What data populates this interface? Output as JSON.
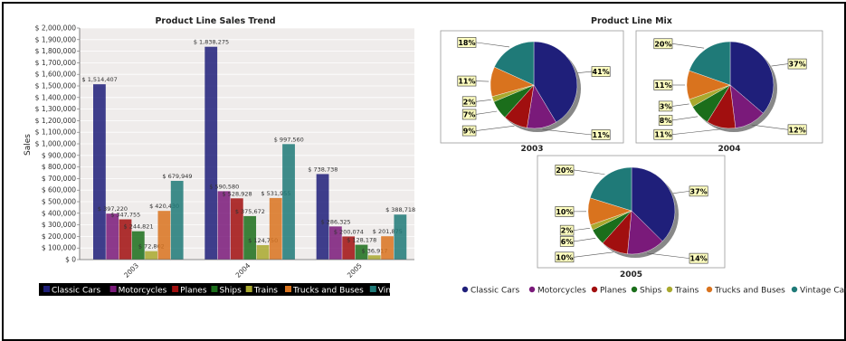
{
  "colors": {
    "Classic Cars": "#1f1f7a",
    "Motorcycles": "#7a1a7a",
    "Planes": "#a10f0f",
    "Ships": "#1b6e1b",
    "Trains": "#a9a92e",
    "Trucks and Buses": "#d9731e",
    "Vintage Cars": "#1f7a78"
  },
  "chart_data": [
    {
      "type": "bar",
      "title": "Product Line Sales Trend",
      "xlabel": "",
      "ylabel": "Sales",
      "ylim": [
        0,
        2000000
      ],
      "ytick_labels": [
        "$ 0",
        "$ 100,000",
        "$ 200,000",
        "$ 300,000",
        "$ 400,000",
        "$ 500,000",
        "$ 600,000",
        "$ 700,000",
        "$ 800,000",
        "$ 900,000",
        "$ 1,000,000",
        "$ 1,100,000",
        "$ 1,200,000",
        "$ 1,300,000",
        "$ 1,400,000",
        "$ 1,500,000",
        "$ 1,600,000",
        "$ 1,700,000",
        "$ 1,800,000",
        "$ 1,900,000",
        "$ 2,000,000"
      ],
      "categories": [
        "2003",
        "2004",
        "2005"
      ],
      "grid": true,
      "legend": "bottom",
      "series": [
        {
          "name": "Classic Cars",
          "values": [
            1514407,
            1838275,
            738738
          ],
          "labels": [
            "$ 1,514,407",
            "$ 1,838,275",
            "$ 738,738"
          ]
        },
        {
          "name": "Motorcycles",
          "values": [
            397220,
            590580,
            286325
          ],
          "labels": [
            "$ 397,220",
            "$ 590,580",
            "$ 286,325"
          ]
        },
        {
          "name": "Planes",
          "values": [
            347755,
            528928,
            200074
          ],
          "labels": [
            "$ 347,755",
            "$ 528,928",
            "$ 200,074"
          ]
        },
        {
          "name": "Ships",
          "values": [
            244821,
            375672,
            128178
          ],
          "labels": [
            "$ 244,821",
            "$ 375,672",
            "$ 128,178"
          ]
        },
        {
          "name": "Trains",
          "values": [
            72802,
            124750,
            36917
          ],
          "labels": [
            "$ 72,802",
            "$ 124,750",
            "$ 36,917"
          ]
        },
        {
          "name": "Trucks and Buses",
          "values": [
            420430,
            531955,
            201875
          ],
          "labels": [
            "$ 420,430",
            "$ 531,955",
            "$ 201,875"
          ]
        },
        {
          "name": "Vintage Cars",
          "values": [
            679949,
            997560,
            388718
          ],
          "labels": [
            "$ 679,949",
            "$ 997,560",
            "$ 388,718"
          ]
        }
      ]
    },
    {
      "type": "pie",
      "title": "Product Line Mix",
      "legend": "bottom",
      "categories": [
        "Classic Cars",
        "Motorcycles",
        "Planes",
        "Ships",
        "Trains",
        "Trucks and Buses",
        "Vintage Cars"
      ],
      "pies": [
        {
          "name": "2003",
          "values": [
            41,
            11,
            9,
            7,
            2,
            11,
            18
          ]
        },
        {
          "name": "2004",
          "values": [
            37,
            12,
            11,
            8,
            3,
            11,
            20
          ]
        },
        {
          "name": "2005",
          "values": [
            37,
            14,
            10,
            6,
            2,
            10,
            20
          ]
        }
      ]
    }
  ]
}
